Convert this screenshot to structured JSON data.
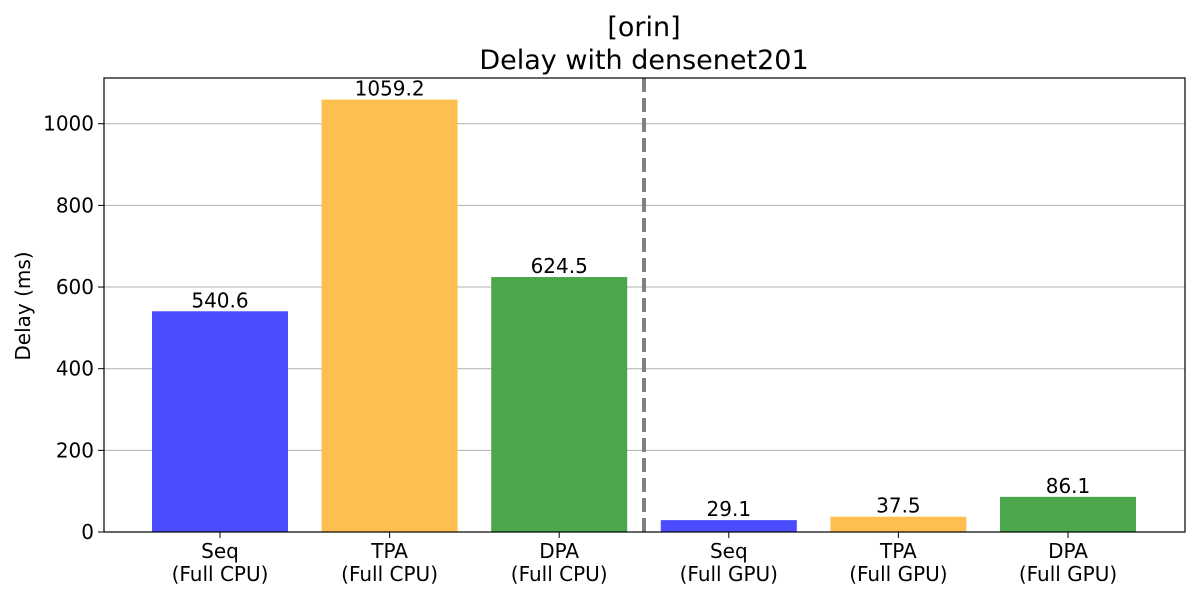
{
  "chart_data": {
    "type": "bar",
    "title_line1": "[orin]",
    "title_line2": "Delay with densenet201",
    "xlabel": "",
    "ylabel": "Delay (ms)",
    "ylim": [
      0,
      1112
    ],
    "yticks": [
      0,
      200,
      400,
      600,
      800,
      1000
    ],
    "grid": "y",
    "categories": [
      [
        "Seq",
        "(Full CPU)"
      ],
      [
        "TPA",
        "(Full CPU)"
      ],
      [
        "DPA",
        "(Full CPU)"
      ],
      [
        "Seq",
        "(Full GPU)"
      ],
      [
        "TPA",
        "(Full GPU)"
      ],
      [
        "DPA",
        "(Full GPU)"
      ]
    ],
    "values": [
      540.6,
      1059.2,
      624.5,
      29.1,
      37.5,
      86.1
    ],
    "value_labels": [
      "540.6",
      "1059.2",
      "624.5",
      "29.1",
      "37.5",
      "86.1"
    ],
    "colors": [
      "#4b4bff",
      "#fdbf4f",
      "#4ca64c",
      "#4b4bff",
      "#fdbf4f",
      "#4ca64c"
    ],
    "separator_after_index": 2,
    "separator_color": "#808080"
  }
}
